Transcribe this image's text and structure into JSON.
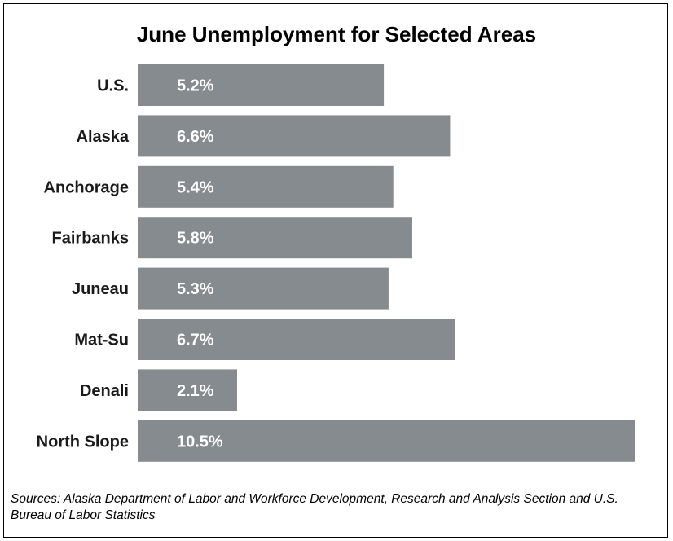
{
  "chart_data": {
    "type": "bar",
    "orientation": "horizontal",
    "title": "June Unemployment for Selected Areas",
    "categories": [
      "U.S.",
      "Alaska",
      "Anchorage",
      "Fairbanks",
      "Juneau",
      "Mat-Su",
      "Denali",
      "North Slope"
    ],
    "values": [
      5.2,
      6.6,
      5.4,
      5.8,
      5.3,
      6.7,
      2.1,
      10.5
    ],
    "value_labels": [
      "5.2%",
      "6.6%",
      "5.4%",
      "5.8%",
      "5.3%",
      "6.7%",
      "2.1%",
      "10.5%"
    ],
    "xlabel": "",
    "ylabel": "",
    "xlim": [
      0,
      10.5
    ],
    "grid": false,
    "legend": "none",
    "bar_color": "#868b90"
  },
  "source_note": "Sources: Alaska Department of Labor and Workforce Development, Research and Analysis Section and U.S. Bureau of Labor Statistics"
}
